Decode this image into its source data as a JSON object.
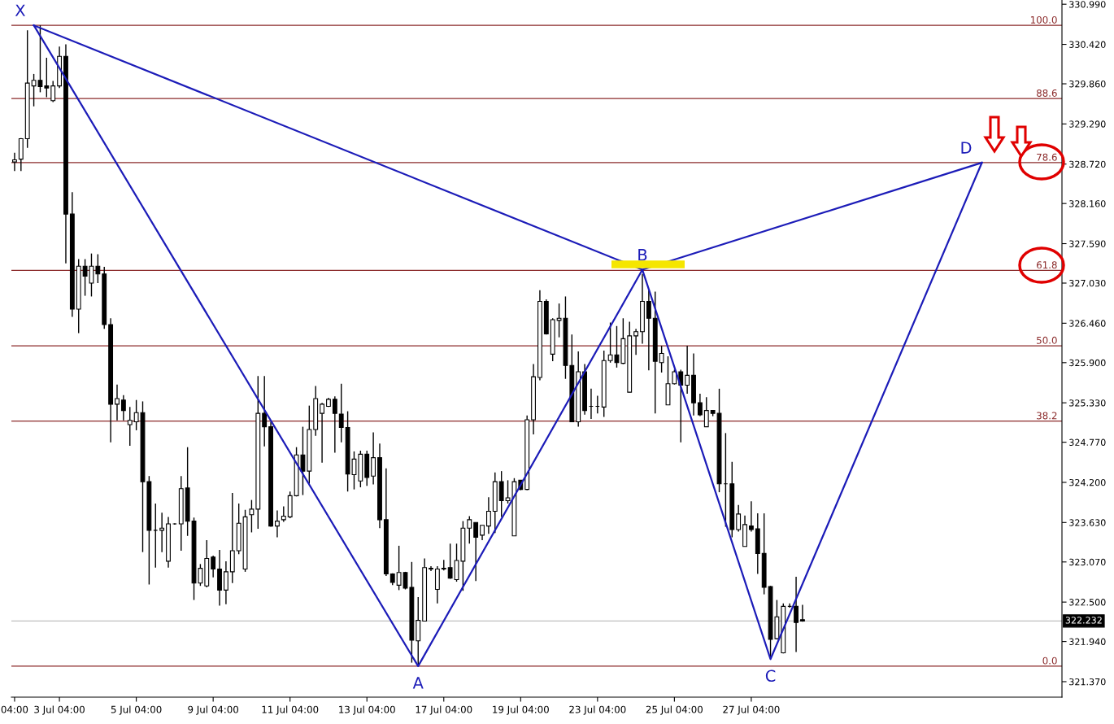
{
  "chart_data": {
    "type": "candlestick",
    "categories": [
      "04:00",
      null,
      null,
      null,
      null,
      null,
      null,
      "3 Jul 04:00",
      null,
      null,
      null,
      null,
      null,
      null,
      null,
      null,
      null,
      null,
      null,
      "5 Jul 04:00",
      null,
      null,
      null,
      null,
      null,
      null,
      null,
      null,
      null,
      null,
      null,
      "9 Jul 04:00",
      null,
      null,
      null,
      null,
      null,
      null,
      null,
      null,
      null,
      null,
      null,
      "11 Jul 04:00",
      null,
      null,
      null,
      null,
      null,
      null,
      null,
      null,
      null,
      null,
      null,
      "13 Jul 04:00",
      null,
      null,
      null,
      null,
      null,
      null,
      null,
      null,
      null,
      null,
      null,
      "17 Jul 04:00",
      null,
      null,
      null,
      null,
      null,
      null,
      null,
      null,
      null,
      null,
      null,
      "19 Jul 04:00",
      null,
      null,
      null,
      null,
      null,
      null,
      null,
      null,
      null,
      null,
      null,
      "23 Jul 04:00",
      null,
      null,
      null,
      null,
      null,
      null,
      null,
      null,
      null,
      null,
      null,
      "25 Jul 04:00",
      null,
      null,
      null,
      null,
      null,
      null,
      null,
      null,
      null,
      null,
      null,
      "27 Jul 04:00",
      null,
      null,
      null,
      null,
      null,
      null,
      null,
      null,
      null,
      null,
      null,
      null,
      null,
      null,
      null,
      null,
      null,
      null,
      null,
      null,
      null,
      null,
      null,
      null,
      null,
      null,
      null,
      null,
      null,
      null,
      null,
      null,
      null,
      null,
      null,
      null,
      null,
      null,
      null,
      null,
      null,
      null,
      null,
      null,
      null,
      null,
      null,
      null
    ],
    "ohlc": [
      [
        328.75,
        328.88,
        328.62,
        328.78
      ],
      [
        328.79,
        329.09,
        328.62,
        329.08
      ],
      [
        329.08,
        330.62,
        328.95,
        329.87
      ],
      [
        329.83,
        330.0,
        329.54,
        329.91
      ],
      [
        329.91,
        330.69,
        329.74,
        329.82
      ],
      [
        329.83,
        330.23,
        329.67,
        329.8
      ],
      [
        329.62,
        329.9,
        329.6,
        329.83
      ],
      [
        329.83,
        330.39,
        329.8,
        330.25
      ],
      [
        330.25,
        330.42,
        327.31,
        328.01
      ],
      [
        328.01,
        328.32,
        326.55,
        326.66
      ],
      [
        326.66,
        327.37,
        326.32,
        327.27
      ],
      [
        327.27,
        327.37,
        326.85,
        327.13
      ],
      [
        327.03,
        327.45,
        326.84,
        327.27
      ],
      [
        327.27,
        327.44,
        327.03,
        327.16
      ],
      [
        327.16,
        327.26,
        326.38,
        326.44
      ],
      [
        326.44,
        326.53,
        324.77,
        325.31
      ],
      [
        325.31,
        325.59,
        325.08,
        325.39
      ],
      [
        325.37,
        325.44,
        325.08,
        325.22
      ],
      [
        325.02,
        325.27,
        324.72,
        325.08
      ],
      [
        325.06,
        325.37,
        324.94,
        325.19
      ],
      [
        325.19,
        325.35,
        323.21,
        324.21
      ],
      [
        324.21,
        324.29,
        322.75,
        323.52
      ],
      [
        323.52,
        323.9,
        322.99,
        323.52
      ],
      [
        323.52,
        323.77,
        323.21,
        323.55
      ],
      [
        323.08,
        323.71,
        322.99,
        323.61
      ],
      [
        323.61,
        323.62,
        323.6,
        323.61
      ],
      [
        323.61,
        324.29,
        323.23,
        324.11
      ],
      [
        324.12,
        324.7,
        323.44,
        323.65
      ],
      [
        323.65,
        323.7,
        322.53,
        322.77
      ],
      [
        322.77,
        323.04,
        322.73,
        322.98
      ],
      [
        322.73,
        323.38,
        322.71,
        323.12
      ],
      [
        323.14,
        323.16,
        322.85,
        322.97
      ],
      [
        322.97,
        323.24,
        322.45,
        322.67
      ],
      [
        322.67,
        323.08,
        322.47,
        322.93
      ],
      [
        322.93,
        324.05,
        322.77,
        323.23
      ],
      [
        323.23,
        323.9,
        323.18,
        323.62
      ],
      [
        322.97,
        323.81,
        322.93,
        323.71
      ],
      [
        323.74,
        323.95,
        323.49,
        323.82
      ],
      [
        323.82,
        325.71,
        323.54,
        325.18
      ],
      [
        325.18,
        325.71,
        324.71,
        324.99
      ],
      [
        324.99,
        325.06,
        323.57,
        323.58
      ],
      [
        323.58,
        323.8,
        323.42,
        323.65
      ],
      [
        323.67,
        323.86,
        323.64,
        323.72
      ],
      [
        323.71,
        324.07,
        323.69,
        324.01
      ],
      [
        324.01,
        324.7,
        324.0,
        324.59
      ],
      [
        324.59,
        324.99,
        324.02,
        324.36
      ],
      [
        324.36,
        325.29,
        324.18,
        324.95
      ],
      [
        324.95,
        325.57,
        324.86,
        325.39
      ],
      [
        325.18,
        325.33,
        324.48,
        325.31
      ],
      [
        325.28,
        325.4,
        325.27,
        325.38
      ],
      [
        325.38,
        325.42,
        324.62,
        325.18
      ],
      [
        325.17,
        325.6,
        324.77,
        324.98
      ],
      [
        324.98,
        325.21,
        324.07,
        324.32
      ],
      [
        324.31,
        324.64,
        324.1,
        324.53
      ],
      [
        324.22,
        324.65,
        324.13,
        324.6
      ],
      [
        324.6,
        324.65,
        324.15,
        324.27
      ],
      [
        324.29,
        324.91,
        324.17,
        324.55
      ],
      [
        324.55,
        324.75,
        323.55,
        323.67
      ],
      [
        323.67,
        324.4,
        322.87,
        322.9
      ],
      [
        322.9,
        322.91,
        322.74,
        322.78
      ],
      [
        322.74,
        323.3,
        322.67,
        322.92
      ],
      [
        322.92,
        322.93,
        322.68,
        322.7
      ],
      [
        322.71,
        323.07,
        321.64,
        321.96
      ],
      [
        321.95,
        322.57,
        321.61,
        322.24
      ],
      [
        322.23,
        323.12,
        322.23,
        322.99
      ],
      [
        322.97,
        323.01,
        322.94,
        322.98
      ],
      [
        322.68,
        323.01,
        322.48,
        322.97
      ],
      [
        322.97,
        323.1,
        322.95,
        322.98
      ],
      [
        322.99,
        323.33,
        322.83,
        322.84
      ],
      [
        322.82,
        323.33,
        322.79,
        323.09
      ],
      [
        323.08,
        323.65,
        322.66,
        323.55
      ],
      [
        323.55,
        323.72,
        323.33,
        323.67
      ],
      [
        323.63,
        323.63,
        322.8,
        323.42
      ],
      [
        323.45,
        323.59,
        323.38,
        323.59
      ],
      [
        323.58,
        323.99,
        323.47,
        323.79
      ],
      [
        323.79,
        324.34,
        323.48,
        324.21
      ],
      [
        324.21,
        324.36,
        323.71,
        323.94
      ],
      [
        323.94,
        324.23,
        323.9,
        323.98
      ],
      [
        323.44,
        324.26,
        323.44,
        324.21
      ],
      [
        324.23,
        324.23,
        324.09,
        324.1
      ],
      [
        324.1,
        325.15,
        324.09,
        325.09
      ],
      [
        325.09,
        325.88,
        324.88,
        325.7
      ],
      [
        325.69,
        326.93,
        325.65,
        326.77
      ],
      [
        326.77,
        326.8,
        326.3,
        326.31
      ],
      [
        326.02,
        326.53,
        325.92,
        326.51
      ],
      [
        326.5,
        326.74,
        326.26,
        326.53
      ],
      [
        326.53,
        326.84,
        325.67,
        325.86
      ],
      [
        325.86,
        326.3,
        325.06,
        325.06
      ],
      [
        325.06,
        326.06,
        324.99,
        325.77
      ],
      [
        325.77,
        325.88,
        325.16,
        325.22
      ],
      [
        325.28,
        325.53,
        325.1,
        325.28
      ],
      [
        325.28,
        325.43,
        325.18,
        325.28
      ],
      [
        325.27,
        326.07,
        325.13,
        325.93
      ],
      [
        325.93,
        326.47,
        325.9,
        326.01
      ],
      [
        326.01,
        326.42,
        325.83,
        325.9
      ],
      [
        325.89,
        326.53,
        325.88,
        326.24
      ],
      [
        325.48,
        326.48,
        325.48,
        326.28
      ],
      [
        326.28,
        326.38,
        326.01,
        326.34
      ],
      [
        326.34,
        327.16,
        326.17,
        326.77
      ],
      [
        326.77,
        326.93,
        325.79,
        326.53
      ],
      [
        326.53,
        326.91,
        325.18,
        325.92
      ],
      [
        325.9,
        326.14,
        325.76,
        326.03
      ],
      [
        325.3,
        325.99,
        325.3,
        325.6
      ],
      [
        325.6,
        325.8,
        325.59,
        325.77
      ],
      [
        325.77,
        325.8,
        324.77,
        325.58
      ],
      [
        325.58,
        326.14,
        325.46,
        325.72
      ],
      [
        325.72,
        326.03,
        325.15,
        325.33
      ],
      [
        325.33,
        325.46,
        325.14,
        325.16
      ],
      [
        324.99,
        325.41,
        324.99,
        325.22
      ],
      [
        325.22,
        325.22,
        325.14,
        325.18
      ],
      [
        325.18,
        325.53,
        324.06,
        324.18
      ],
      [
        324.18,
        324.9,
        323.57,
        324.18
      ],
      [
        324.18,
        324.49,
        323.42,
        323.53
      ],
      [
        323.53,
        323.88,
        323.5,
        323.75
      ],
      [
        323.29,
        323.73,
        323.29,
        323.6
      ],
      [
        323.58,
        323.93,
        323.5,
        323.53
      ],
      [
        323.54,
        323.76,
        322.9,
        323.19
      ],
      [
        323.19,
        323.76,
        322.61,
        322.71
      ],
      [
        322.72,
        322.73,
        321.7,
        321.97
      ],
      [
        321.98,
        322.53,
        321.97,
        322.29
      ],
      [
        321.78,
        322.48,
        321.77,
        322.44
      ],
      [
        322.44,
        322.48,
        322.42,
        322.44
      ],
      [
        322.44,
        322.86,
        321.79,
        322.21
      ],
      [
        322.25,
        322.46,
        322.22,
        322.23
      ],
      null,
      null,
      null,
      null,
      null,
      null,
      null,
      null,
      null,
      null,
      null,
      null,
      null,
      null,
      null,
      null,
      null,
      null,
      null,
      null,
      null,
      null,
      null,
      null,
      null,
      null,
      null,
      null,
      null,
      null,
      null,
      null,
      null,
      null,
      null,
      null,
      null,
      null,
      null,
      null
    ],
    "series": [
      {
        "type": "line",
        "color": "#1c1cb8",
        "values": [
          null,
          null,
          null,
          330.69,
          null,
          null,
          null,
          null,
          null,
          null,
          null,
          null,
          null,
          null,
          null,
          null,
          null,
          null,
          null,
          null,
          null,
          null,
          null,
          null,
          null,
          null,
          null,
          null,
          null,
          null,
          null,
          null,
          null,
          null,
          null,
          null,
          null,
          null,
          null,
          null,
          null,
          null,
          null,
          null,
          null,
          null,
          null,
          null,
          null,
          null,
          null,
          null,
          null,
          null,
          null,
          null,
          null,
          null,
          null,
          null,
          null,
          null,
          null,
          321.59,
          null,
          null,
          null,
          null,
          null,
          null,
          null,
          null,
          null,
          null,
          null,
          null,
          null,
          null,
          null,
          null,
          null,
          null,
          null,
          null,
          null,
          null,
          null,
          null,
          null,
          null,
          null,
          null,
          null,
          null,
          null,
          null,
          null,
          null,
          327.22,
          null,
          null,
          null,
          null,
          null,
          null,
          null,
          null,
          null,
          null,
          null,
          null,
          null,
          null,
          null,
          null,
          null,
          null,
          null,
          321.69,
          null,
          null,
          null,
          null,
          null,
          null,
          null,
          null,
          null,
          null,
          null,
          null,
          null,
          null,
          null,
          null,
          null,
          null,
          null,
          null,
          null,
          null,
          null,
          null,
          null,
          null,
          null,
          null,
          null,
          null,
          null,
          null,
          328.74,
          null,
          null,
          null,
          null,
          null,
          null,
          null,
          null,
          null,
          null,
          null,
          null
        ]
      },
      {
        "type": "line",
        "color": "#1c1cb8",
        "values": [
          null,
          null,
          null,
          330.69,
          null,
          null,
          null,
          null,
          null,
          null,
          null,
          null,
          null,
          null,
          null,
          null,
          null,
          null,
          null,
          null,
          null,
          null,
          null,
          null,
          null,
          null,
          null,
          null,
          null,
          null,
          null,
          null,
          null,
          null,
          null,
          null,
          null,
          null,
          null,
          null,
          null,
          null,
          null,
          null,
          null,
          null,
          null,
          null,
          null,
          null,
          null,
          null,
          null,
          null,
          null,
          null,
          null,
          null,
          null,
          null,
          null,
          null,
          null,
          null,
          null,
          null,
          null,
          null,
          null,
          null,
          null,
          null,
          null,
          null,
          null,
          null,
          null,
          null,
          null,
          null,
          null,
          null,
          null,
          null,
          null,
          null,
          null,
          null,
          null,
          null,
          null,
          null,
          null,
          null,
          null,
          null,
          null,
          null,
          327.22,
          null,
          null,
          null,
          null,
          null,
          null,
          null,
          null,
          null,
          null,
          null,
          null,
          null,
          null,
          null,
          null,
          null,
          null,
          null,
          null,
          null,
          null,
          null,
          null,
          null,
          null,
          null,
          null,
          null,
          null,
          null,
          null,
          null,
          null,
          null,
          null,
          null,
          null,
          null,
          null,
          null,
          null,
          null,
          null,
          null,
          null,
          null,
          null,
          null,
          null,
          null,
          null,
          328.74,
          null,
          null,
          null,
          null,
          null,
          null,
          null,
          null,
          null,
          null,
          null,
          null
        ]
      }
    ],
    "ylim": [
      321.15,
      331.05
    ],
    "yticks": [
      {
        "value": 330.99,
        "label": "330.990"
      },
      {
        "value": 330.42,
        "label": "330.420"
      },
      {
        "value": 329.86,
        "label": "329.860"
      },
      {
        "value": 329.29,
        "label": "329.290"
      },
      {
        "value": 328.72,
        "label": "328.720"
      },
      {
        "value": 328.16,
        "label": "328.160"
      },
      {
        "value": 327.59,
        "label": "327.590"
      },
      {
        "value": 327.03,
        "label": "327.030"
      },
      {
        "value": 326.46,
        "label": "326.460"
      },
      {
        "value": 325.9,
        "label": "325.900"
      },
      {
        "value": 325.33,
        "label": "325.330"
      },
      {
        "value": 324.77,
        "label": "324.770"
      },
      {
        "value": 324.2,
        "label": "324.200"
      },
      {
        "value": 323.63,
        "label": "323.630"
      },
      {
        "value": 323.07,
        "label": "323.070"
      },
      {
        "value": 322.5,
        "label": "322.500"
      },
      {
        "value": 321.94,
        "label": "321.940"
      },
      {
        "value": 321.37,
        "label": "321.370"
      }
    ],
    "ref_lines": [
      {
        "axis": "y",
        "value": 330.69,
        "color": "#8b2a2a"
      },
      {
        "axis": "y",
        "value": 329.65,
        "color": "#8b2a2a"
      },
      {
        "axis": "y",
        "value": 328.74,
        "color": "#8b2a2a"
      },
      {
        "axis": "y",
        "value": 327.21,
        "color": "#8b2a2a"
      },
      {
        "axis": "y",
        "value": 326.14,
        "color": "#8b2a2a"
      },
      {
        "axis": "y",
        "value": 325.07,
        "color": "#8b2a2a"
      },
      {
        "axis": "y",
        "value": 321.59,
        "color": "#8b2a2a"
      },
      {
        "axis": "y",
        "value": 322.232,
        "color": "#c0c0c0"
      }
    ],
    "annotations": [
      {
        "text": "X",
        "y": 330.69
      },
      {
        "text": "A",
        "y": 321.59
      },
      {
        "text": "B",
        "y": 327.22
      },
      {
        "text": "C",
        "y": 321.69
      },
      {
        "text": "D",
        "y": 328.74
      },
      "100.0",
      "88.6",
      "78.6",
      "61.8",
      "50.0",
      "38.2",
      "0.0",
      "322.232"
    ]
  }
}
